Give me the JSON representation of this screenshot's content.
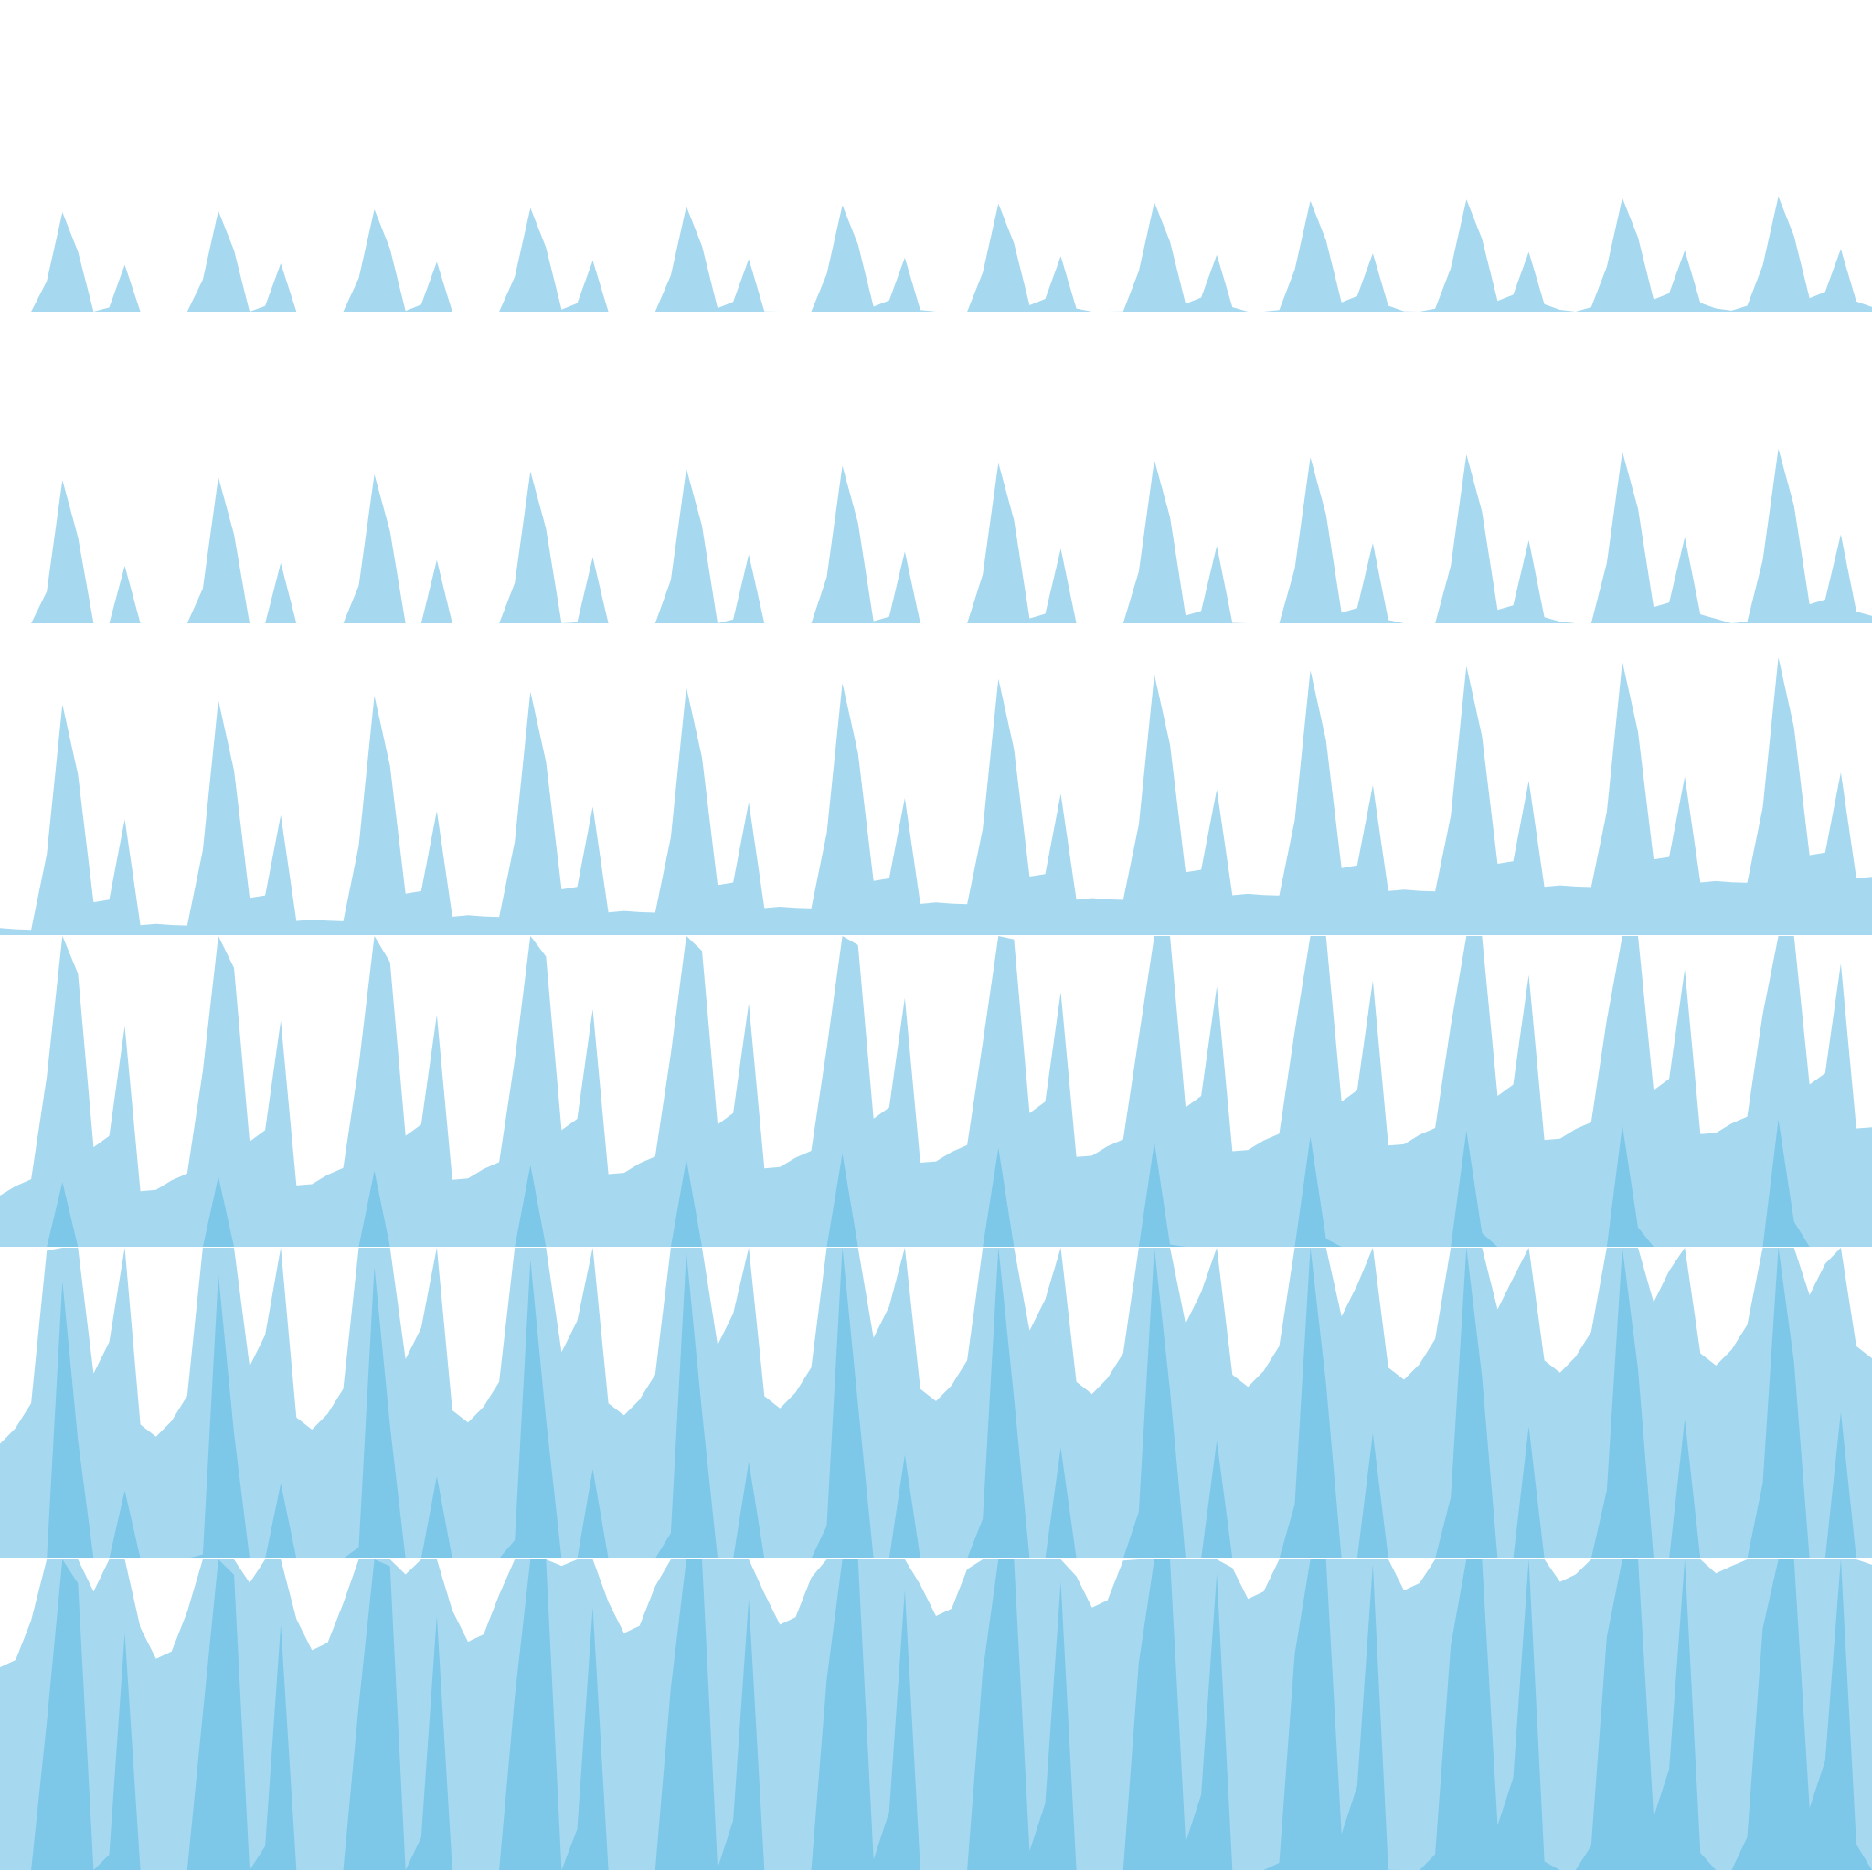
{
  "chart_data": {
    "type": "area",
    "chart_style": "horizon",
    "title": "",
    "xlabel": "",
    "ylabel": "",
    "grid": false,
    "legend": "none",
    "band_count": 2,
    "colors": {
      "band_light": "#a6d8f0",
      "band_dark": "#7dc7e9"
    },
    "samples_per_row": 120,
    "series": [
      {
        "amplitude": 0.11,
        "offset": 0.18,
        "base": -0.02
      },
      {
        "amplitude": 0.22,
        "offset": 0.28,
        "base": -0.05
      },
      {
        "amplitude": 0.33,
        "offset": 0.38,
        "base": 0.0
      },
      {
        "amplitude": 0.44,
        "offset": 0.55,
        "base": 0.08
      },
      {
        "amplitude": 0.55,
        "offset": 0.78,
        "base": 0.2
      },
      {
        "amplitude": 0.66,
        "offset": 0.98,
        "base": 0.35
      }
    ]
  }
}
